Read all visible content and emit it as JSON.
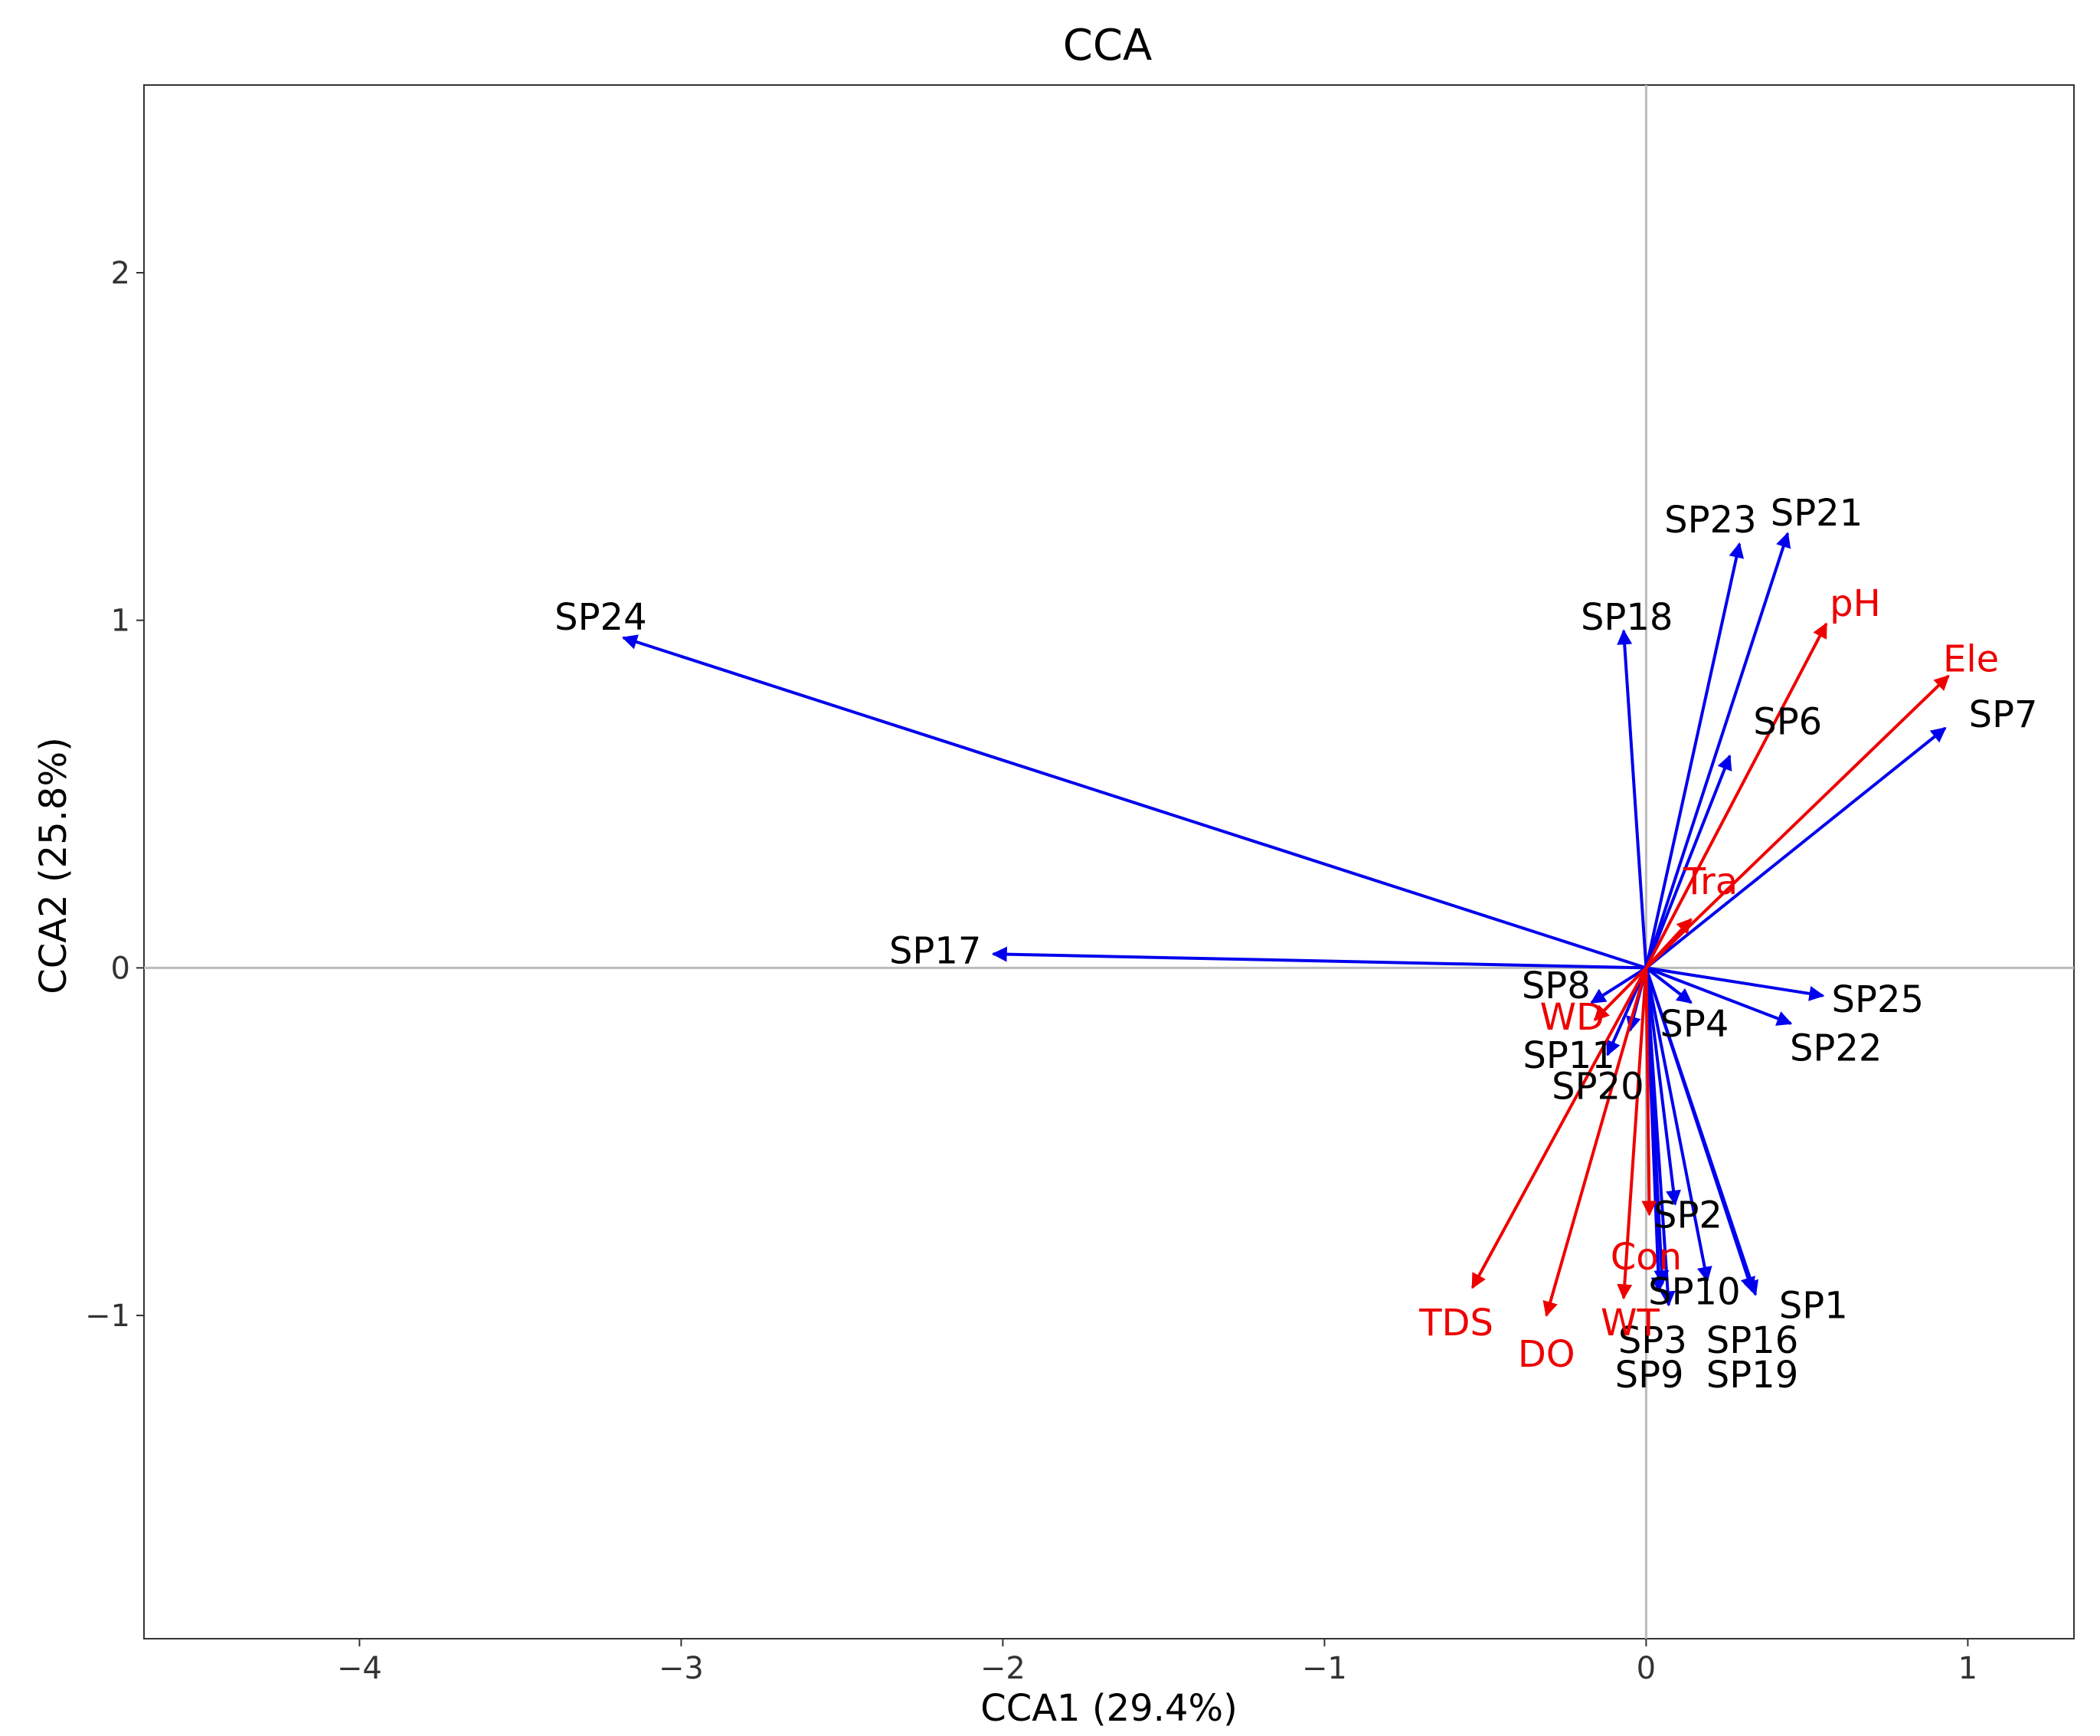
{
  "chart_data": {
    "type": "scatter",
    "subtype": "biplot",
    "title": "CCA",
    "xlabel": "CCA1 (29.4%)",
    "ylabel": "CCA2 (25.8%)",
    "xlim": [
      -4.67,
      1.33
    ],
    "ylim": [
      -1.93,
      2.54
    ],
    "x_ticks": [
      -4,
      -3,
      -2,
      -1,
      0,
      1
    ],
    "x_tick_labels": [
      "−4",
      "−3",
      "−2",
      "−1",
      "0",
      "1"
    ],
    "y_ticks": [
      -1,
      0,
      1,
      2
    ],
    "y_tick_labels": [
      "−1",
      "0",
      "1",
      "2"
    ],
    "grid": false,
    "reference_lines": {
      "x": 0,
      "y": 0
    },
    "colors": {
      "species": "#0000ee",
      "environment": "#ee0000",
      "species_label": "#000000",
      "environment_label": "#ee0000",
      "reference": "#bbbbbb",
      "frame": "#333333"
    },
    "series": [
      {
        "name": "species",
        "points": [
          {
            "label": "SP24",
            "x": -3.18,
            "y": 0.95,
            "lx": -3.25,
            "ly": 1.01
          },
          {
            "label": "SP17",
            "x": -2.03,
            "y": 0.04,
            "lx": -2.21,
            "ly": 0.05
          },
          {
            "label": "SP18",
            "x": -0.07,
            "y": 0.97,
            "lx": -0.06,
            "ly": 1.01
          },
          {
            "label": "SP23",
            "x": 0.29,
            "y": 1.22,
            "lx": 0.2,
            "ly": 1.29
          },
          {
            "label": "SP21",
            "x": 0.44,
            "y": 1.25,
            "lx": 0.53,
            "ly": 1.31
          },
          {
            "label": "SP6",
            "x": 0.26,
            "y": 0.61,
            "lx": 0.44,
            "ly": 0.71
          },
          {
            "label": "SP7",
            "x": 0.93,
            "y": 0.69,
            "lx": 1.11,
            "ly": 0.73
          },
          {
            "label": "SP25",
            "x": 0.55,
            "y": -0.08,
            "lx": 0.72,
            "ly": -0.09
          },
          {
            "label": "SP22",
            "x": 0.45,
            "y": -0.16,
            "lx": 0.59,
            "ly": -0.23
          },
          {
            "label": "SP4",
            "x": 0.14,
            "y": -0.1,
            "lx": 0.15,
            "ly": -0.16
          },
          {
            "label": "SP8",
            "x": -0.17,
            "y": -0.1,
            "lx": -0.28,
            "ly": -0.05
          },
          {
            "label": "SP11",
            "x": -0.12,
            "y": -0.25,
            "lx": -0.24,
            "ly": -0.25
          },
          {
            "label": "SP20",
            "x": -0.05,
            "y": -0.18,
            "lx": -0.15,
            "ly": -0.34
          },
          {
            "label": "SP2",
            "x": 0.09,
            "y": -0.68,
            "lx": 0.13,
            "ly": -0.71
          },
          {
            "label": "SP10",
            "x": 0.07,
            "y": -0.97,
            "lx": 0.15,
            "ly": -0.93
          },
          {
            "label": "SP1",
            "x": 0.34,
            "y": -0.94,
            "lx": 0.52,
            "ly": -0.97
          },
          {
            "label": "SP16",
            "x": 0.19,
            "y": -0.9,
            "lx": 0.33,
            "ly": -1.07
          },
          {
            "label": "SP3",
            "x": 0.05,
            "y": -0.91,
            "lx": 0.02,
            "ly": -1.07
          },
          {
            "label": "SP9",
            "x": 0.04,
            "y": -0.93,
            "lx": 0.01,
            "ly": -1.17
          },
          {
            "label": "SP19",
            "x": 0.33,
            "y": -0.93,
            "lx": 0.33,
            "ly": -1.17
          }
        ]
      },
      {
        "name": "environment",
        "points": [
          {
            "label": "pH",
            "x": 0.56,
            "y": 0.99,
            "lx": 0.65,
            "ly": 1.05
          },
          {
            "label": "Ele",
            "x": 0.94,
            "y": 0.84,
            "lx": 1.01,
            "ly": 0.89
          },
          {
            "label": "Tra",
            "x": 0.14,
            "y": 0.14,
            "lx": 0.2,
            "ly": 0.25
          },
          {
            "label": "WD",
            "x": -0.16,
            "y": -0.15,
            "lx": -0.23,
            "ly": -0.14
          },
          {
            "label": "Con",
            "x": 0.01,
            "y": -0.71,
            "lx": 0.0,
            "ly": -0.83
          },
          {
            "label": "TDS",
            "x": -0.54,
            "y": -0.92,
            "lx": -0.59,
            "ly": -1.02
          },
          {
            "label": "DO",
            "x": -0.31,
            "y": -1.0,
            "lx": -0.31,
            "ly": -1.11
          },
          {
            "label": "WT",
            "x": -0.07,
            "y": -0.95,
            "lx": -0.05,
            "ly": -1.02
          }
        ]
      }
    ]
  }
}
